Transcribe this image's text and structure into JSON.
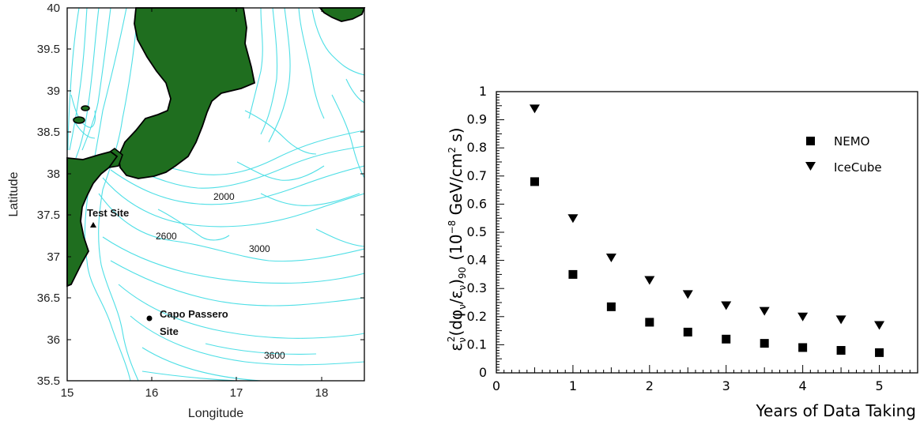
{
  "map": {
    "xlabel": "Longitude",
    "ylabel": "Latitude",
    "xlim": [
      15,
      18.5
    ],
    "ylim": [
      35.5,
      40
    ],
    "xticks": [
      "15",
      "16",
      "17",
      "18"
    ],
    "yticks": [
      "35.5",
      "36",
      "36.5",
      "37",
      "37.5",
      "38",
      "38.5",
      "39",
      "39.5",
      "40"
    ],
    "depth_labels": [
      "2000",
      "2600",
      "3000",
      "3600"
    ],
    "sites": {
      "test_site": "Test Site",
      "capo_line1": "Capo Passero",
      "capo_line2": "Site"
    },
    "colors": {
      "land": "#1f6e1f",
      "contour": "#4fdfe6"
    }
  },
  "chart_data": {
    "type": "scatter",
    "x": [
      0.5,
      1,
      1.5,
      2,
      2.5,
      3,
      3.5,
      4,
      4.5,
      5
    ],
    "series": [
      {
        "name": "NEMO",
        "marker": "square",
        "values": [
          0.68,
          0.35,
          0.235,
          0.18,
          0.145,
          0.12,
          0.105,
          0.09,
          0.08,
          0.072
        ]
      },
      {
        "name": "IceCube",
        "marker": "triangle-down",
        "values": [
          0.94,
          0.55,
          0.41,
          0.33,
          0.28,
          0.24,
          0.22,
          0.2,
          0.19,
          0.17
        ]
      }
    ],
    "xlabel": "Years of Data Taking",
    "ylabel_parts": {
      "eps": "ε",
      "sub_nu": "ν",
      "sup2": "2",
      "mid": "(dφ",
      "slash": "/ε",
      "close": ")",
      "sub90": "90",
      "unit": "(10",
      "exp": "−8",
      "unit2": " GeV/cm",
      "unit3": " s)"
    },
    "xlim": [
      0,
      5.5
    ],
    "ylim": [
      0,
      1
    ],
    "xticks": [
      "0",
      "1",
      "2",
      "3",
      "4",
      "5"
    ],
    "yticks": [
      "0",
      "0.1",
      "0.2",
      "0.3",
      "0.4",
      "0.5",
      "0.6",
      "0.7",
      "0.8",
      "0.9",
      "1"
    ],
    "legend": "top-right"
  }
}
